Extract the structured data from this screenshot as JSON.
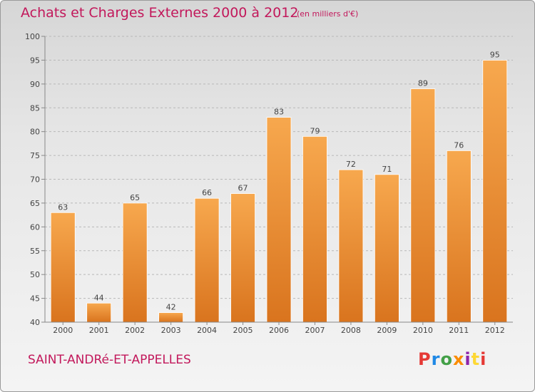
{
  "header": {
    "title": "Achats et Charges Externes 2000 à 2012",
    "unit": "(en milliers d'€)"
  },
  "footer": {
    "commune": "SAINT-ANDRé-ET-APPELLES",
    "brand": "Proxiti"
  },
  "colors": {
    "title": "#c2185b",
    "bar_top": "#f7a84e",
    "bar_bottom": "#d9741e",
    "logo_letters": [
      "#e53935",
      "#1e88e5",
      "#43a047",
      "#fb8c00",
      "#8e24aa",
      "#fdd835",
      "#e53935"
    ]
  },
  "chart_data": {
    "type": "bar",
    "categories": [
      "2000",
      "2001",
      "2002",
      "2003",
      "2004",
      "2005",
      "2006",
      "2007",
      "2008",
      "2009",
      "2010",
      "2011",
      "2012"
    ],
    "values": [
      63,
      44,
      65,
      42,
      66,
      67,
      83,
      79,
      72,
      71,
      89,
      76,
      95
    ],
    "ylim": [
      40,
      100
    ],
    "yticks": [
      40,
      45,
      50,
      55,
      60,
      65,
      70,
      75,
      80,
      85,
      90,
      95,
      100
    ],
    "grid": "horizontal dashed",
    "legend": "none"
  }
}
